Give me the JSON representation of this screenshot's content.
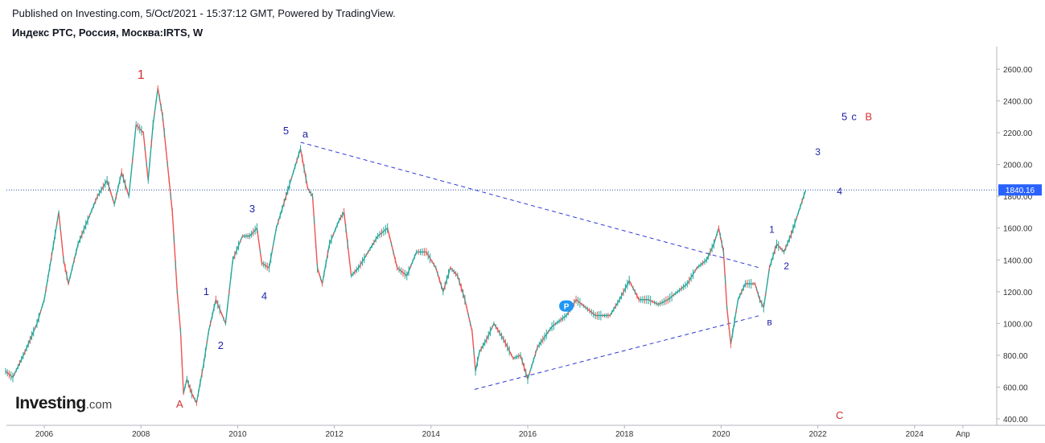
{
  "header": {
    "published": "Published on Investing.com, 5/Oct/2021 - 15:37:12 GMT, Powered by TradingView.",
    "symbol": "Индекс РТС, Россия, Москва:IRTS, W"
  },
  "branding": {
    "logo_main": "Investing",
    "logo_suffix": ".com"
  },
  "chart_data": {
    "type": "line",
    "ylim": [
      400,
      2700
    ],
    "xlim": [
      2005.2,
      2025.5
    ],
    "y_ticks": [
      {
        "v": 400,
        "label": "400.00"
      },
      {
        "v": 600,
        "label": "600.00"
      },
      {
        "v": 800,
        "label": "800.00"
      },
      {
        "v": 1000,
        "label": "1000.00"
      },
      {
        "v": 1200,
        "label": "1200.00"
      },
      {
        "v": 1400,
        "label": "1400.00"
      },
      {
        "v": 1600,
        "label": "1600.00"
      },
      {
        "v": 1800,
        "label": "1800.00"
      },
      {
        "v": 2000,
        "label": "2000.00"
      },
      {
        "v": 2200,
        "label": "2200.00"
      },
      {
        "v": 2400,
        "label": "2400.00"
      },
      {
        "v": 2600,
        "label": "2600.00"
      }
    ],
    "x_ticks": [
      {
        "v": 2006,
        "label": "2006"
      },
      {
        "v": 2008,
        "label": "2008"
      },
      {
        "v": 2010,
        "label": "2010"
      },
      {
        "v": 2012,
        "label": "2012"
      },
      {
        "v": 2014,
        "label": "2014"
      },
      {
        "v": 2016,
        "label": "2016"
      },
      {
        "v": 2018,
        "label": "2018"
      },
      {
        "v": 2020,
        "label": "2020"
      },
      {
        "v": 2022,
        "label": "2022"
      },
      {
        "v": 2024,
        "label": "2024"
      },
      {
        "v": 2025.0,
        "label": "Апр"
      }
    ],
    "last_price": {
      "value": 1840.16,
      "label": "1840.16"
    },
    "series": [
      {
        "color": "#26a69a",
        "down_color": "#ef5350",
        "points": [
          [
            2005.2,
            700
          ],
          [
            2005.35,
            660
          ],
          [
            2005.6,
            820
          ],
          [
            2005.85,
            1000
          ],
          [
            2006.0,
            1150
          ],
          [
            2006.15,
            1420
          ],
          [
            2006.3,
            1700
          ],
          [
            2006.4,
            1400
          ],
          [
            2006.5,
            1250
          ],
          [
            2006.7,
            1500
          ],
          [
            2006.9,
            1650
          ],
          [
            2007.1,
            1800
          ],
          [
            2007.3,
            1900
          ],
          [
            2007.45,
            1750
          ],
          [
            2007.6,
            1950
          ],
          [
            2007.75,
            1800
          ],
          [
            2007.9,
            2250
          ],
          [
            2008.05,
            2200
          ],
          [
            2008.15,
            1900
          ],
          [
            2008.25,
            2250
          ],
          [
            2008.35,
            2480
          ],
          [
            2008.45,
            2300
          ],
          [
            2008.55,
            2000
          ],
          [
            2008.65,
            1700
          ],
          [
            2008.75,
            1200
          ],
          [
            2008.82,
            950
          ],
          [
            2008.88,
            560
          ],
          [
            2008.95,
            650
          ],
          [
            2009.05,
            560
          ],
          [
            2009.15,
            500
          ],
          [
            2009.3,
            750
          ],
          [
            2009.4,
            950
          ],
          [
            2009.55,
            1150
          ],
          [
            2009.75,
            1000
          ],
          [
            2009.9,
            1400
          ],
          [
            2010.1,
            1550
          ],
          [
            2010.25,
            1550
          ],
          [
            2010.4,
            1600
          ],
          [
            2010.5,
            1380
          ],
          [
            2010.65,
            1350
          ],
          [
            2010.8,
            1600
          ],
          [
            2011.0,
            1800
          ],
          [
            2011.15,
            1950
          ],
          [
            2011.3,
            2100
          ],
          [
            2011.45,
            1850
          ],
          [
            2011.55,
            1800
          ],
          [
            2011.65,
            1350
          ],
          [
            2011.75,
            1250
          ],
          [
            2011.9,
            1500
          ],
          [
            2012.1,
            1650
          ],
          [
            2012.2,
            1700
          ],
          [
            2012.35,
            1300
          ],
          [
            2012.5,
            1350
          ],
          [
            2012.7,
            1450
          ],
          [
            2012.9,
            1550
          ],
          [
            2013.1,
            1600
          ],
          [
            2013.3,
            1350
          ],
          [
            2013.5,
            1300
          ],
          [
            2013.7,
            1450
          ],
          [
            2013.9,
            1450
          ],
          [
            2014.1,
            1350
          ],
          [
            2014.25,
            1200
          ],
          [
            2014.4,
            1350
          ],
          [
            2014.55,
            1300
          ],
          [
            2014.7,
            1150
          ],
          [
            2014.85,
            950
          ],
          [
            2014.92,
            700
          ],
          [
            2015.0,
            820
          ],
          [
            2015.15,
            900
          ],
          [
            2015.3,
            1000
          ],
          [
            2015.5,
            900
          ],
          [
            2015.7,
            780
          ],
          [
            2015.85,
            800
          ],
          [
            2016.0,
            650
          ],
          [
            2016.2,
            850
          ],
          [
            2016.5,
            980
          ],
          [
            2016.8,
            1050
          ],
          [
            2017.0,
            1150
          ],
          [
            2017.2,
            1100
          ],
          [
            2017.4,
            1050
          ],
          [
            2017.7,
            1050
          ],
          [
            2017.9,
            1150
          ],
          [
            2018.1,
            1270
          ],
          [
            2018.3,
            1150
          ],
          [
            2018.5,
            1150
          ],
          [
            2018.7,
            1120
          ],
          [
            2018.9,
            1150
          ],
          [
            2019.1,
            1200
          ],
          [
            2019.3,
            1250
          ],
          [
            2019.5,
            1350
          ],
          [
            2019.7,
            1400
          ],
          [
            2019.85,
            1500
          ],
          [
            2019.95,
            1600
          ],
          [
            2020.05,
            1450
          ],
          [
            2020.12,
            1100
          ],
          [
            2020.2,
            870
          ],
          [
            2020.35,
            1150
          ],
          [
            2020.5,
            1250
          ],
          [
            2020.7,
            1250
          ],
          [
            2020.8,
            1150
          ],
          [
            2020.88,
            1100
          ],
          [
            2021.0,
            1350
          ],
          [
            2021.15,
            1500
          ],
          [
            2021.3,
            1450
          ],
          [
            2021.45,
            1560
          ],
          [
            2021.6,
            1700
          ],
          [
            2021.75,
            1840.16
          ]
        ]
      }
    ],
    "trendlines": [
      {
        "from": [
          2011.3,
          2140
        ],
        "to": [
          2020.8,
          1350
        ]
      },
      {
        "from": [
          2014.9,
          585
        ],
        "to": [
          2020.8,
          1050
        ]
      }
    ],
    "annotations": [
      {
        "text": "1",
        "x": 2008.0,
        "y": 2540,
        "color": "#d32f2f",
        "size": 16
      },
      {
        "text": "A",
        "x": 2008.8,
        "y": 470,
        "color": "#d32f2f",
        "size": 13
      },
      {
        "text": "1",
        "x": 2009.35,
        "y": 1180,
        "color": "#1e1eaa",
        "size": 13
      },
      {
        "text": "2",
        "x": 2009.65,
        "y": 840,
        "color": "#1e1eaa",
        "size": 13
      },
      {
        "text": "3",
        "x": 2010.3,
        "y": 1700,
        "color": "#1e1eaa",
        "size": 13
      },
      {
        "text": "4",
        "x": 2010.55,
        "y": 1150,
        "color": "#1e1eaa",
        "size": 13
      },
      {
        "text": "5",
        "x": 2011.0,
        "y": 2190,
        "color": "#1e1eaa",
        "size": 13
      },
      {
        "text": "a",
        "x": 2011.4,
        "y": 2170,
        "color": "#1e1eaa",
        "size": 13
      },
      {
        "text": "в",
        "x": 2021.0,
        "y": 990,
        "color": "#1e1eaa",
        "size": 12
      },
      {
        "text": "1",
        "x": 2021.05,
        "y": 1570,
        "color": "#1e1eaa",
        "size": 12
      },
      {
        "text": "2",
        "x": 2021.35,
        "y": 1340,
        "color": "#1e1eaa",
        "size": 12
      },
      {
        "text": "3",
        "x": 2022.0,
        "y": 2060,
        "color": "#1e1eaa",
        "size": 12
      },
      {
        "text": "4",
        "x": 2022.45,
        "y": 1810,
        "color": "#1e1eaa",
        "size": 12
      },
      {
        "text": "5",
        "x": 2022.55,
        "y": 2280,
        "color": "#1e1eaa",
        "size": 13
      },
      {
        "text": "c",
        "x": 2022.75,
        "y": 2280,
        "color": "#1e1eaa",
        "size": 13
      },
      {
        "text": "B",
        "x": 2023.05,
        "y": 2280,
        "color": "#d32f2f",
        "size": 13
      },
      {
        "text": "C",
        "x": 2022.45,
        "y": 400,
        "color": "#d32f2f",
        "size": 13
      }
    ],
    "marker": {
      "text": "P",
      "x": 2016.8,
      "y": 1110,
      "color": "#2196f3"
    },
    "grid": false
  }
}
